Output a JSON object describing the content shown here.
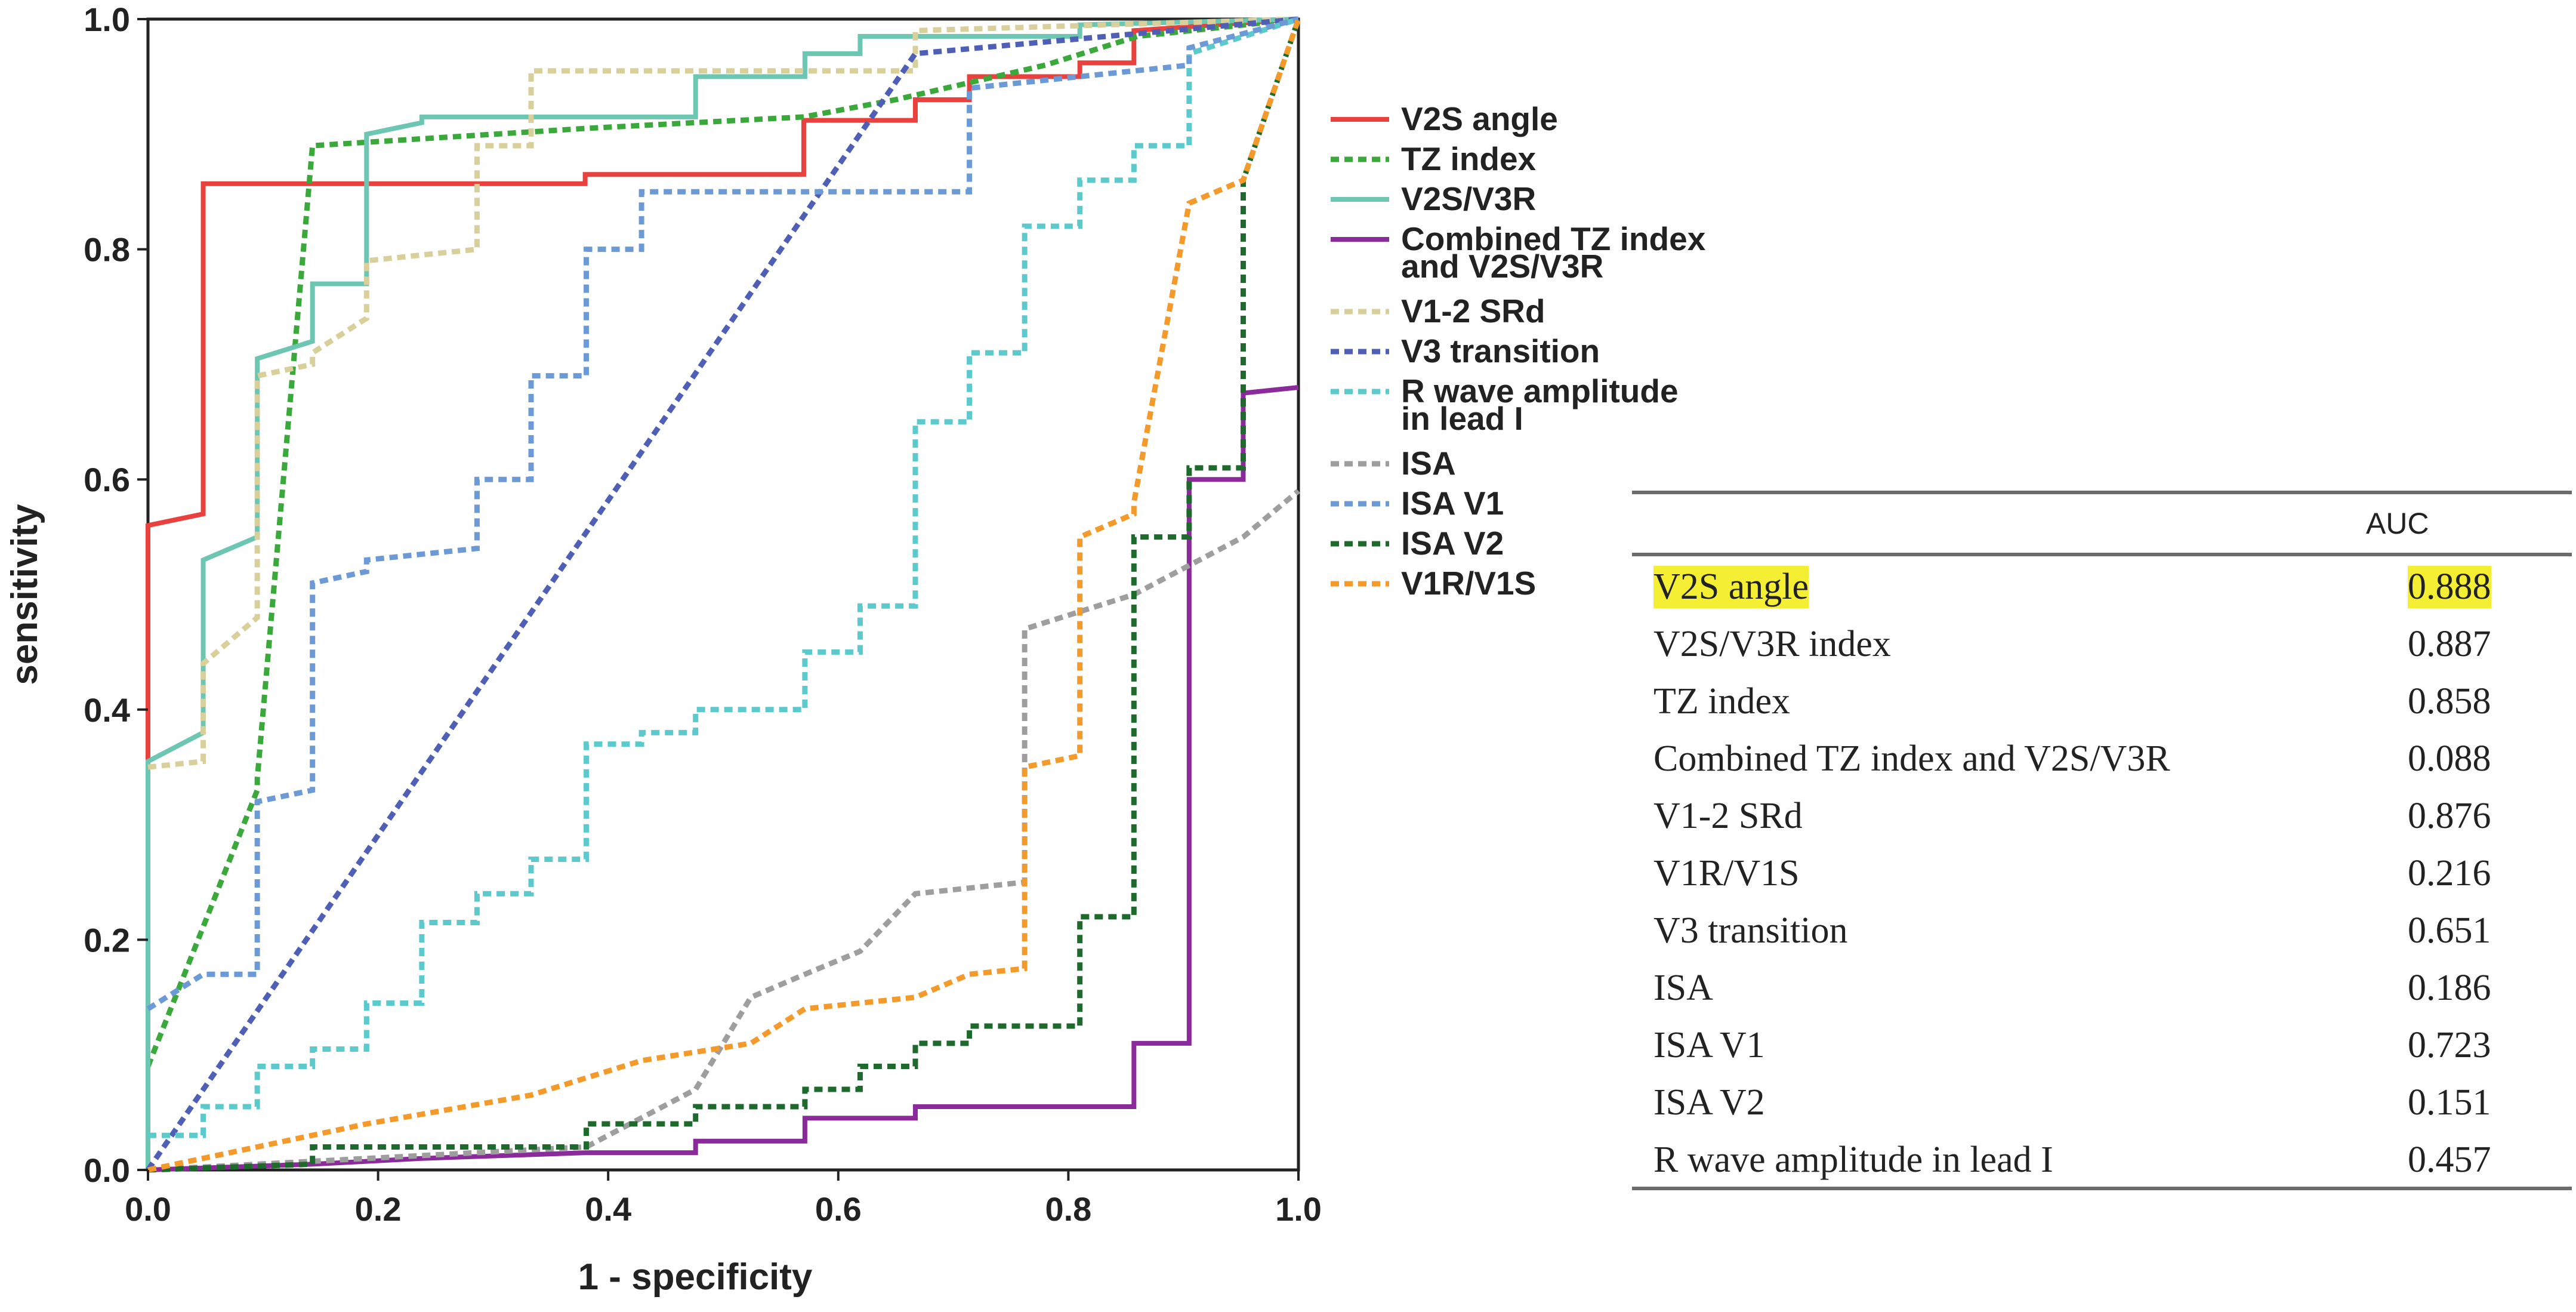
{
  "chart_data": {
    "type": "line",
    "xlabel": "1 - specificity",
    "ylabel": "sensitivity",
    "xlim": [
      0,
      1
    ],
    "ylim": [
      0,
      1
    ],
    "xticks": [
      "0.0",
      "0.2",
      "0.4",
      "0.6",
      "0.8",
      "1.0"
    ],
    "yticks": [
      "0.0",
      "0.2",
      "0.4",
      "0.6",
      "0.8",
      "1.0"
    ],
    "legend_position": "right",
    "series": [
      {
        "name": "V2S angle",
        "color": "#e8413e",
        "dash": false,
        "points": [
          [
            0,
            0
          ],
          [
            0,
            0.56
          ],
          [
            0.048,
            0.57
          ],
          [
            0.048,
            0.857
          ],
          [
            0.38,
            0.857
          ],
          [
            0.38,
            0.865
          ],
          [
            0.57,
            0.865
          ],
          [
            0.57,
            0.912
          ],
          [
            0.667,
            0.912
          ],
          [
            0.667,
            0.93
          ],
          [
            0.714,
            0.93
          ],
          [
            0.714,
            0.95
          ],
          [
            0.81,
            0.95
          ],
          [
            0.81,
            0.962
          ],
          [
            0.857,
            0.962
          ],
          [
            0.857,
            0.975
          ],
          [
            0.857,
            0.99
          ],
          [
            1,
            1
          ]
        ]
      },
      {
        "name": "TZ index",
        "color": "#3aa83a",
        "dash": true,
        "points": [
          [
            0,
            0.09
          ],
          [
            0.095,
            0.33
          ],
          [
            0.095,
            0.34
          ],
          [
            0.143,
            0.89
          ],
          [
            0.38,
            0.905
          ],
          [
            0.57,
            0.915
          ],
          [
            0.65,
            0.93
          ],
          [
            0.78,
            0.96
          ],
          [
            0.86,
            0.985
          ],
          [
            1,
            1
          ]
        ]
      },
      {
        "name": "V2S/V3R",
        "color": "#6cc6b2",
        "dash": false,
        "points": [
          [
            0,
            0
          ],
          [
            0,
            0.355
          ],
          [
            0.048,
            0.38
          ],
          [
            0.048,
            0.53
          ],
          [
            0.095,
            0.55
          ],
          [
            0.095,
            0.705
          ],
          [
            0.143,
            0.72
          ],
          [
            0.143,
            0.77
          ],
          [
            0.19,
            0.77
          ],
          [
            0.19,
            0.9
          ],
          [
            0.238,
            0.91
          ],
          [
            0.238,
            0.915
          ],
          [
            0.476,
            0.915
          ],
          [
            0.476,
            0.95
          ],
          [
            0.571,
            0.95
          ],
          [
            0.571,
            0.97
          ],
          [
            0.619,
            0.97
          ],
          [
            0.619,
            0.985
          ],
          [
            0.81,
            0.985
          ],
          [
            0.81,
            0.995
          ],
          [
            1,
            1
          ]
        ]
      },
      {
        "name": "Combined TZ index and V2S/V3R",
        "color": "#8b2a9a",
        "dash": false,
        "points": [
          [
            0,
            0
          ],
          [
            0.143,
            0.005
          ],
          [
            0.238,
            0.01
          ],
          [
            0.381,
            0.015
          ],
          [
            0.476,
            0.015
          ],
          [
            0.476,
            0.025
          ],
          [
            0.571,
            0.025
          ],
          [
            0.571,
            0.045
          ],
          [
            0.667,
            0.045
          ],
          [
            0.667,
            0.055
          ],
          [
            0.857,
            0.055
          ],
          [
            0.857,
            0.11
          ],
          [
            0.905,
            0.11
          ],
          [
            0.905,
            0.6
          ],
          [
            0.952,
            0.6
          ],
          [
            0.952,
            0.675
          ],
          [
            1,
            0.68
          ]
        ]
      },
      {
        "name": "V1-2 SRd",
        "color": "#d8cf9b",
        "dash": true,
        "points": [
          [
            0,
            0.35
          ],
          [
            0.048,
            0.355
          ],
          [
            0.048,
            0.44
          ],
          [
            0.095,
            0.48
          ],
          [
            0.095,
            0.69
          ],
          [
            0.143,
            0.7
          ],
          [
            0.143,
            0.71
          ],
          [
            0.19,
            0.74
          ],
          [
            0.19,
            0.79
          ],
          [
            0.286,
            0.8
          ],
          [
            0.286,
            0.89
          ],
          [
            0.333,
            0.89
          ],
          [
            0.333,
            0.955
          ],
          [
            0.667,
            0.955
          ],
          [
            0.667,
            0.99
          ],
          [
            1,
            1
          ]
        ]
      },
      {
        "name": "V3 transition",
        "color": "#4f5fb6",
        "dash": true,
        "points": [
          [
            0,
            0
          ],
          [
            0.667,
            0.97
          ],
          [
            1,
            1
          ]
        ]
      },
      {
        "name": "R wave amplitude in lead I",
        "color": "#5cc9cc",
        "dash": true,
        "points": [
          [
            0,
            0.03
          ],
          [
            0.048,
            0.03
          ],
          [
            0.048,
            0.055
          ],
          [
            0.095,
            0.055
          ],
          [
            0.095,
            0.09
          ],
          [
            0.143,
            0.09
          ],
          [
            0.143,
            0.105
          ],
          [
            0.19,
            0.105
          ],
          [
            0.19,
            0.145
          ],
          [
            0.238,
            0.145
          ],
          [
            0.238,
            0.215
          ],
          [
            0.286,
            0.215
          ],
          [
            0.286,
            0.24
          ],
          [
            0.333,
            0.24
          ],
          [
            0.333,
            0.27
          ],
          [
            0.381,
            0.27
          ],
          [
            0.381,
            0.37
          ],
          [
            0.429,
            0.37
          ],
          [
            0.429,
            0.38
          ],
          [
            0.476,
            0.38
          ],
          [
            0.476,
            0.4
          ],
          [
            0.571,
            0.4
          ],
          [
            0.571,
            0.45
          ],
          [
            0.619,
            0.45
          ],
          [
            0.619,
            0.49
          ],
          [
            0.667,
            0.49
          ],
          [
            0.667,
            0.65
          ],
          [
            0.714,
            0.65
          ],
          [
            0.714,
            0.71
          ],
          [
            0.762,
            0.71
          ],
          [
            0.762,
            0.82
          ],
          [
            0.81,
            0.82
          ],
          [
            0.81,
            0.86
          ],
          [
            0.857,
            0.86
          ],
          [
            0.857,
            0.89
          ],
          [
            0.905,
            0.89
          ],
          [
            0.905,
            0.97
          ],
          [
            1,
            1
          ]
        ]
      },
      {
        "name": "ISA",
        "color": "#9e9e9e",
        "dash": true,
        "points": [
          [
            0,
            0
          ],
          [
            0.381,
            0.02
          ],
          [
            0.476,
            0.07
          ],
          [
            0.524,
            0.15
          ],
          [
            0.571,
            0.17
          ],
          [
            0.619,
            0.19
          ],
          [
            0.667,
            0.24
          ],
          [
            0.762,
            0.25
          ],
          [
            0.762,
            0.47
          ],
          [
            0.857,
            0.5
          ],
          [
            0.952,
            0.55
          ],
          [
            1,
            0.59
          ]
        ]
      },
      {
        "name": "ISA V1",
        "color": "#6b9ad6",
        "dash": true,
        "points": [
          [
            0,
            0.14
          ],
          [
            0.048,
            0.17
          ],
          [
            0.095,
            0.17
          ],
          [
            0.095,
            0.32
          ],
          [
            0.143,
            0.33
          ],
          [
            0.143,
            0.51
          ],
          [
            0.19,
            0.52
          ],
          [
            0.19,
            0.53
          ],
          [
            0.286,
            0.54
          ],
          [
            0.286,
            0.6
          ],
          [
            0.333,
            0.6
          ],
          [
            0.333,
            0.69
          ],
          [
            0.381,
            0.69
          ],
          [
            0.381,
            0.8
          ],
          [
            0.429,
            0.8
          ],
          [
            0.429,
            0.85
          ],
          [
            0.714,
            0.85
          ],
          [
            0.714,
            0.94
          ],
          [
            0.905,
            0.96
          ],
          [
            0.905,
            0.975
          ],
          [
            1,
            1
          ]
        ]
      },
      {
        "name": "ISA V2",
        "color": "#1d6a2c",
        "dash": true,
        "points": [
          [
            0,
            0
          ],
          [
            0.143,
            0.005
          ],
          [
            0.143,
            0.02
          ],
          [
            0.381,
            0.02
          ],
          [
            0.381,
            0.04
          ],
          [
            0.476,
            0.04
          ],
          [
            0.476,
            0.055
          ],
          [
            0.571,
            0.055
          ],
          [
            0.571,
            0.07
          ],
          [
            0.619,
            0.07
          ],
          [
            0.619,
            0.09
          ],
          [
            0.667,
            0.09
          ],
          [
            0.667,
            0.11
          ],
          [
            0.714,
            0.11
          ],
          [
            0.714,
            0.125
          ],
          [
            0.81,
            0.125
          ],
          [
            0.81,
            0.22
          ],
          [
            0.857,
            0.22
          ],
          [
            0.857,
            0.24
          ],
          [
            0.857,
            0.55
          ],
          [
            0.905,
            0.55
          ],
          [
            0.905,
            0.61
          ],
          [
            0.952,
            0.61
          ],
          [
            0.952,
            0.86
          ],
          [
            1,
            1
          ]
        ]
      },
      {
        "name": "V1R/V1S",
        "color": "#f39a2b",
        "dash": true,
        "points": [
          [
            0,
            0
          ],
          [
            0.19,
            0.04
          ],
          [
            0.333,
            0.065
          ],
          [
            0.429,
            0.095
          ],
          [
            0.524,
            0.11
          ],
          [
            0.571,
            0.14
          ],
          [
            0.667,
            0.15
          ],
          [
            0.714,
            0.17
          ],
          [
            0.762,
            0.175
          ],
          [
            0.762,
            0.35
          ],
          [
            0.81,
            0.36
          ],
          [
            0.81,
            0.55
          ],
          [
            0.857,
            0.57
          ],
          [
            0.857,
            0.58
          ],
          [
            0.905,
            0.84
          ],
          [
            0.952,
            0.86
          ],
          [
            1,
            1
          ]
        ]
      }
    ]
  },
  "table": {
    "header": "AUC",
    "rows": [
      {
        "name": "V2S angle",
        "auc": "0.888",
        "highlight": true
      },
      {
        "name": "V2S/V3R index",
        "auc": "0.887",
        "highlight": false
      },
      {
        "name": "TZ index",
        "auc": "0.858",
        "highlight": false
      },
      {
        "name": "Combined TZ index and V2S/V3R",
        "auc": "0.088",
        "highlight": false
      },
      {
        "name": "V1-2 SRd",
        "auc": "0.876",
        "highlight": false
      },
      {
        "name": "V1R/V1S",
        "auc": "0.216",
        "highlight": false
      },
      {
        "name": "V3 transition",
        "auc": "0.651",
        "highlight": false
      },
      {
        "name": "ISA",
        "auc": "0.186",
        "highlight": false
      },
      {
        "name": "ISA V1",
        "auc": "0.723",
        "highlight": false
      },
      {
        "name": "ISA V2",
        "auc": "0.151",
        "highlight": false
      },
      {
        "name": "R wave amplitude in lead I",
        "auc": "0.457",
        "highlight": false
      }
    ]
  },
  "highlight_color": "#f5ef34"
}
